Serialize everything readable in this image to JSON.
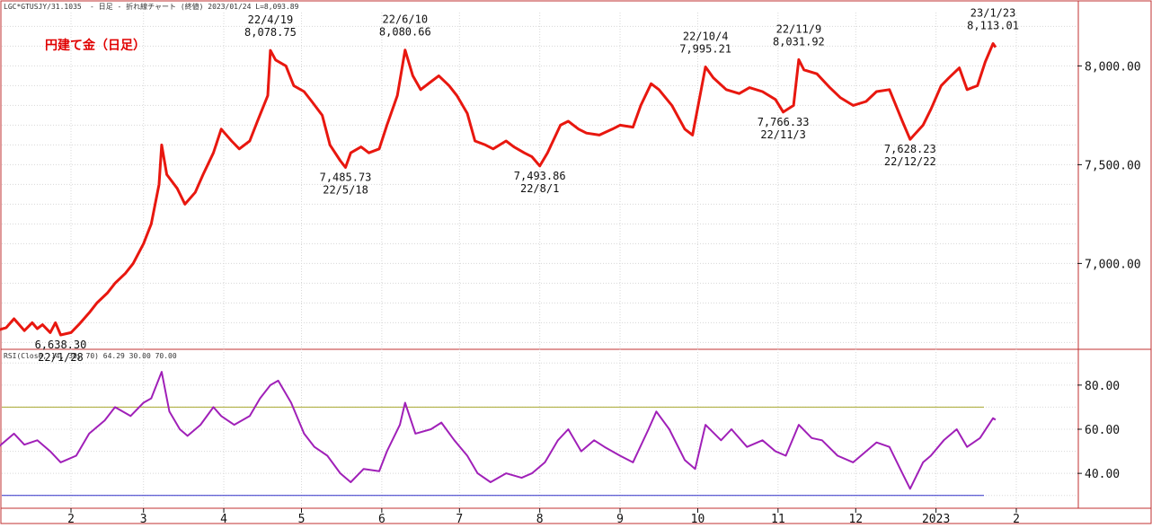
{
  "header": {
    "symbol": "LGC*GTUSJY/31.1035",
    "info": "- 日足 - 折れ線チャート (終値)  2023/01/24 L=8,093.89"
  },
  "colors": {
    "price_line": "#e8170f",
    "rsi_line": "#a020b8",
    "rsi_upper": "#a8a830",
    "rsi_lower": "#3030c8",
    "frame": "#c03030",
    "grid": "#d8d8d8"
  },
  "chart_data": [
    {
      "type": "line",
      "title": "円建て金（日足）",
      "x_unit": "date",
      "ylim": [
        6570,
        8270
      ],
      "yticks": [
        "8,000.00",
        "7,500.00",
        "7,000.00"
      ],
      "ytick_values": [
        8000,
        7500,
        7000
      ],
      "grid": true,
      "series": [
        {
          "points": [
            [
              "2022-01-04",
              6663
            ],
            [
              "2022-01-07",
              6675
            ],
            [
              "2022-01-10",
              6720
            ],
            [
              "2022-01-12",
              6690
            ],
            [
              "2022-01-14",
              6660
            ],
            [
              "2022-01-17",
              6700
            ],
            [
              "2022-01-19",
              6670
            ],
            [
              "2022-01-21",
              6690
            ],
            [
              "2022-01-24",
              6650
            ],
            [
              "2022-01-26",
              6700
            ],
            [
              "2022-01-28",
              6638.3
            ],
            [
              "2022-02-01",
              6650
            ],
            [
              "2022-02-04",
              6690
            ],
            [
              "2022-02-08",
              6750
            ],
            [
              "2022-02-11",
              6800
            ],
            [
              "2022-02-15",
              6850
            ],
            [
              "2022-02-18",
              6900
            ],
            [
              "2022-02-22",
              6950
            ],
            [
              "2022-02-25",
              7000
            ],
            [
              "2022-03-01",
              7100
            ],
            [
              "2022-03-04",
              7200
            ],
            [
              "2022-03-07",
              7400
            ],
            [
              "2022-03-08",
              7600
            ],
            [
              "2022-03-10",
              7450
            ],
            [
              "2022-03-14",
              7380
            ],
            [
              "2022-03-17",
              7300
            ],
            [
              "2022-03-21",
              7360
            ],
            [
              "2022-03-24",
              7450
            ],
            [
              "2022-03-28",
              7560
            ],
            [
              "2022-03-31",
              7680
            ],
            [
              "2022-04-04",
              7620
            ],
            [
              "2022-04-07",
              7580
            ],
            [
              "2022-04-11",
              7620
            ],
            [
              "2022-04-14",
              7720
            ],
            [
              "2022-04-18",
              7850
            ],
            [
              "2022-04-19",
              8078.75
            ],
            [
              "2022-04-21",
              8030
            ],
            [
              "2022-04-25",
              8000
            ],
            [
              "2022-04-28",
              7900
            ],
            [
              "2022-05-02",
              7870
            ],
            [
              "2022-05-05",
              7820
            ],
            [
              "2022-05-09",
              7750
            ],
            [
              "2022-05-12",
              7600
            ],
            [
              "2022-05-16",
              7520
            ],
            [
              "2022-05-18",
              7485.73
            ],
            [
              "2022-05-20",
              7560
            ],
            [
              "2022-05-24",
              7590
            ],
            [
              "2022-05-27",
              7560
            ],
            [
              "2022-05-31",
              7580
            ],
            [
              "2022-06-03",
              7700
            ],
            [
              "2022-06-07",
              7850
            ],
            [
              "2022-06-10",
              8080.66
            ],
            [
              "2022-06-13",
              7950
            ],
            [
              "2022-06-16",
              7880
            ],
            [
              "2022-06-20",
              7920
            ],
            [
              "2022-06-23",
              7950
            ],
            [
              "2022-06-27",
              7900
            ],
            [
              "2022-06-30",
              7850
            ],
            [
              "2022-07-04",
              7760
            ],
            [
              "2022-07-07",
              7620
            ],
            [
              "2022-07-11",
              7600
            ],
            [
              "2022-07-14",
              7580
            ],
            [
              "2022-07-19",
              7620
            ],
            [
              "2022-07-22",
              7590
            ],
            [
              "2022-07-26",
              7560
            ],
            [
              "2022-07-29",
              7540
            ],
            [
              "2022-08-01",
              7493.86
            ],
            [
              "2022-08-04",
              7560
            ],
            [
              "2022-08-09",
              7700
            ],
            [
              "2022-08-12",
              7720
            ],
            [
              "2022-08-16",
              7680
            ],
            [
              "2022-08-19",
              7660
            ],
            [
              "2022-08-24",
              7650
            ],
            [
              "2022-08-29",
              7680
            ],
            [
              "2022-09-01",
              7700
            ],
            [
              "2022-09-06",
              7690
            ],
            [
              "2022-09-09",
              7800
            ],
            [
              "2022-09-13",
              7910
            ],
            [
              "2022-09-16",
              7880
            ],
            [
              "2022-09-21",
              7800
            ],
            [
              "2022-09-26",
              7680
            ],
            [
              "2022-09-29",
              7650
            ],
            [
              "2022-10-04",
              7995.21
            ],
            [
              "2022-10-07",
              7940
            ],
            [
              "2022-10-12",
              7880
            ],
            [
              "2022-10-17",
              7860
            ],
            [
              "2022-10-21",
              7890
            ],
            [
              "2022-10-26",
              7870
            ],
            [
              "2022-10-31",
              7830
            ],
            [
              "2022-11-03",
              7766.33
            ],
            [
              "2022-11-07",
              7800
            ],
            [
              "2022-11-09",
              8031.92
            ],
            [
              "2022-11-11",
              7980
            ],
            [
              "2022-11-16",
              7960
            ],
            [
              "2022-11-21",
              7890
            ],
            [
              "2022-11-25",
              7840
            ],
            [
              "2022-11-30",
              7800
            ],
            [
              "2022-12-05",
              7820
            ],
            [
              "2022-12-09",
              7870
            ],
            [
              "2022-12-14",
              7880
            ],
            [
              "2022-12-19",
              7720
            ],
            [
              "2022-12-22",
              7628.23
            ],
            [
              "2022-12-27",
              7700
            ],
            [
              "2022-12-30",
              7780
            ],
            [
              "2023-01-03",
              7900
            ],
            [
              "2023-01-06",
              7940
            ],
            [
              "2023-01-10",
              7990
            ],
            [
              "2023-01-13",
              7880
            ],
            [
              "2023-01-17",
              7900
            ],
            [
              "2023-01-20",
              8020
            ],
            [
              "2023-01-23",
              8113.01
            ],
            [
              "2023-01-24",
              8093.89
            ]
          ]
        }
      ],
      "annotations": [
        {
          "date": "2022-01-28",
          "value": 6638.3,
          "line1": "6,638.30",
          "line2": "22/1/28",
          "position": "below"
        },
        {
          "date": "2022-04-19",
          "value": 8078.75,
          "line1": "22/4/19",
          "line2": "8,078.75",
          "position": "above"
        },
        {
          "date": "2022-05-18",
          "value": 7485.73,
          "line1": "7,485.73",
          "line2": "22/5/18",
          "position": "below"
        },
        {
          "date": "2022-06-10",
          "value": 8080.66,
          "line1": "22/6/10",
          "line2": "8,080.66",
          "position": "above"
        },
        {
          "date": "2022-08-01",
          "value": 7493.86,
          "line1": "7,493.86",
          "line2": "22/8/1",
          "position": "below"
        },
        {
          "date": "2022-10-04",
          "value": 7995.21,
          "line1": "22/10/4",
          "line2": "7,995.21",
          "position": "above"
        },
        {
          "date": "2022-11-03",
          "value": 7766.33,
          "line1": "7,766.33",
          "line2": "22/11/3",
          "position": "below"
        },
        {
          "date": "2022-11-09",
          "value": 8031.92,
          "line1": "22/11/9",
          "line2": "8,031.92",
          "position": "above"
        },
        {
          "date": "2022-12-22",
          "value": 7628.23,
          "line1": "7,628.23",
          "line2": "22/12/22",
          "position": "below"
        },
        {
          "date": "2023-01-23",
          "value": 8113.01,
          "line1": "23/1/23",
          "line2": "8,113.01",
          "position": "above"
        }
      ]
    },
    {
      "type": "line",
      "title": "RSI(Close, 14, 30, 70) 64.29 30.00 70.00",
      "ylim": [
        25,
        95
      ],
      "yticks": [
        "80.00",
        "60.00",
        "40.00"
      ],
      "ytick_values": [
        80,
        60,
        40
      ],
      "reference_lines": [
        {
          "value": 70,
          "color_key": "rsi_upper"
        },
        {
          "value": 30,
          "color_key": "rsi_lower"
        }
      ],
      "series": [
        {
          "points": [
            [
              "2022-01-04",
              52
            ],
            [
              "2022-01-10",
              58
            ],
            [
              "2022-01-14",
              53
            ],
            [
              "2022-01-19",
              55
            ],
            [
              "2022-01-24",
              50
            ],
            [
              "2022-01-28",
              45
            ],
            [
              "2022-02-03",
              48
            ],
            [
              "2022-02-08",
              58
            ],
            [
              "2022-02-14",
              64
            ],
            [
              "2022-02-18",
              70
            ],
            [
              "2022-02-24",
              66
            ],
            [
              "2022-03-01",
              72
            ],
            [
              "2022-03-04",
              74
            ],
            [
              "2022-03-08",
              86
            ],
            [
              "2022-03-11",
              68
            ],
            [
              "2022-03-15",
              60
            ],
            [
              "2022-03-18",
              57
            ],
            [
              "2022-03-23",
              62
            ],
            [
              "2022-03-28",
              70
            ],
            [
              "2022-03-31",
              66
            ],
            [
              "2022-04-05",
              62
            ],
            [
              "2022-04-11",
              66
            ],
            [
              "2022-04-15",
              74
            ],
            [
              "2022-04-19",
              80
            ],
            [
              "2022-04-22",
              82
            ],
            [
              "2022-04-27",
              72
            ],
            [
              "2022-05-02",
              58
            ],
            [
              "2022-05-06",
              52
            ],
            [
              "2022-05-11",
              48
            ],
            [
              "2022-05-16",
              40
            ],
            [
              "2022-05-20",
              36
            ],
            [
              "2022-05-25",
              42
            ],
            [
              "2022-05-31",
              41
            ],
            [
              "2022-06-03",
              50
            ],
            [
              "2022-06-08",
              62
            ],
            [
              "2022-06-10",
              72
            ],
            [
              "2022-06-14",
              58
            ],
            [
              "2022-06-20",
              60
            ],
            [
              "2022-06-24",
              63
            ],
            [
              "2022-06-29",
              55
            ],
            [
              "2022-07-04",
              48
            ],
            [
              "2022-07-08",
              40
            ],
            [
              "2022-07-13",
              36
            ],
            [
              "2022-07-19",
              40
            ],
            [
              "2022-07-25",
              38
            ],
            [
              "2022-07-29",
              40
            ],
            [
              "2022-08-03",
              45
            ],
            [
              "2022-08-08",
              55
            ],
            [
              "2022-08-12",
              60
            ],
            [
              "2022-08-17",
              50
            ],
            [
              "2022-08-22",
              55
            ],
            [
              "2022-08-26",
              52
            ],
            [
              "2022-09-01",
              48
            ],
            [
              "2022-09-06",
              45
            ],
            [
              "2022-09-12",
              60
            ],
            [
              "2022-09-15",
              68
            ],
            [
              "2022-09-20",
              60
            ],
            [
              "2022-09-26",
              46
            ],
            [
              "2022-09-30",
              42
            ],
            [
              "2022-10-04",
              62
            ],
            [
              "2022-10-10",
              55
            ],
            [
              "2022-10-14",
              60
            ],
            [
              "2022-10-20",
              52
            ],
            [
              "2022-10-26",
              55
            ],
            [
              "2022-10-31",
              50
            ],
            [
              "2022-11-04",
              48
            ],
            [
              "2022-11-09",
              62
            ],
            [
              "2022-11-14",
              56
            ],
            [
              "2022-11-18",
              55
            ],
            [
              "2022-11-24",
              48
            ],
            [
              "2022-11-30",
              45
            ],
            [
              "2022-12-05",
              50
            ],
            [
              "2022-12-09",
              54
            ],
            [
              "2022-12-14",
              52
            ],
            [
              "2022-12-19",
              40
            ],
            [
              "2022-12-22",
              33
            ],
            [
              "2022-12-27",
              45
            ],
            [
              "2022-12-30",
              48
            ],
            [
              "2023-01-04",
              55
            ],
            [
              "2023-01-09",
              60
            ],
            [
              "2023-01-13",
              52
            ],
            [
              "2023-01-18",
              56
            ],
            [
              "2023-01-23",
              65
            ],
            [
              "2023-01-24",
              64.29
            ]
          ]
        }
      ]
    }
  ],
  "x_axis": {
    "labels": [
      "2",
      "3",
      "4",
      "5",
      "6",
      "7",
      "8",
      "9",
      "10",
      "11",
      "12",
      "2023",
      "2"
    ],
    "dates": [
      "2022-02-01",
      "2022-03-01",
      "2022-04-01",
      "2022-05-01",
      "2022-06-01",
      "2022-07-01",
      "2022-08-01",
      "2022-09-01",
      "2022-10-01",
      "2022-11-01",
      "2022-12-01",
      "2023-01-01",
      "2023-02-01"
    ]
  }
}
